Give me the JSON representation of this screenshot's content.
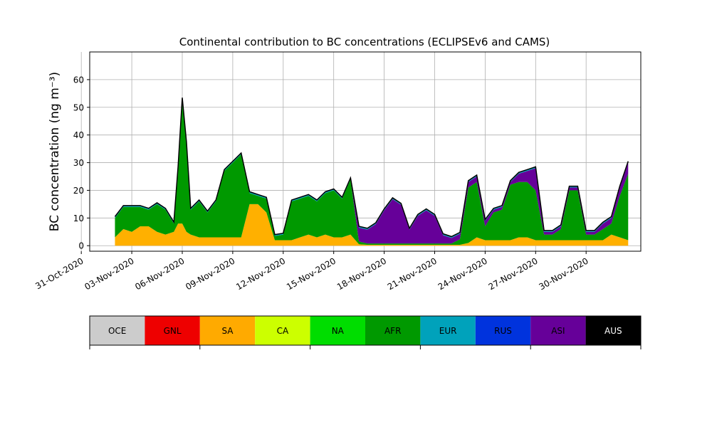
{
  "chart_data": {
    "type": "area",
    "title": "Continental contribution to BC concentrations (ECLIPSEv6 and CAMS)",
    "ylabel": "BC concentration (ng m⁻³)",
    "xlabel": "",
    "x_unit": "date (Nov 2020)",
    "xlim": [
      "2020-10-31T12:00",
      "2020-12-03T06:00"
    ],
    "ylim": [
      -2,
      70
    ],
    "y_ticks": [
      0,
      10,
      20,
      30,
      40,
      50,
      60
    ],
    "x_ticks": [
      "31-Oct-2020",
      "03-Nov-2020",
      "06-Nov-2020",
      "09-Nov-2020",
      "12-Nov-2020",
      "15-Nov-2020",
      "18-Nov-2020",
      "21-Nov-2020",
      "24-Nov-2020",
      "27-Nov-2020",
      "30-Nov-2020"
    ],
    "x_tick_dates": [
      "2020-10-31",
      "2020-11-03",
      "2020-11-06",
      "2020-11-09",
      "2020-11-12",
      "2020-11-15",
      "2020-11-18",
      "2020-11-21",
      "2020-11-24",
      "2020-11-27",
      "2020-11-30"
    ],
    "grid": true,
    "stacking": "stacked",
    "total_line_color": "#000000",
    "dates": [
      "2020-11-02T00:00",
      "2020-11-02T12:00",
      "2020-11-03T00:00",
      "2020-11-03T12:00",
      "2020-11-04T00:00",
      "2020-11-04T12:00",
      "2020-11-05T00:00",
      "2020-11-05T12:00",
      "2020-11-05T18:00",
      "2020-11-06T00:00",
      "2020-11-06T06:00",
      "2020-11-06T12:00",
      "2020-11-07T00:00",
      "2020-11-07T12:00",
      "2020-11-08T00:00",
      "2020-11-08T12:00",
      "2020-11-09T00:00",
      "2020-11-09T12:00",
      "2020-11-10T00:00",
      "2020-11-10T12:00",
      "2020-11-11T00:00",
      "2020-11-11T12:00",
      "2020-11-12T00:00",
      "2020-11-12T12:00",
      "2020-11-13T00:00",
      "2020-11-13T12:00",
      "2020-11-14T00:00",
      "2020-11-14T12:00",
      "2020-11-15T00:00",
      "2020-11-15T12:00",
      "2020-11-16T00:00",
      "2020-11-16T12:00",
      "2020-11-17T00:00",
      "2020-11-17T12:00",
      "2020-11-18T00:00",
      "2020-11-18T12:00",
      "2020-11-19T00:00",
      "2020-11-19T12:00",
      "2020-11-20T00:00",
      "2020-11-20T12:00",
      "2020-11-21T00:00",
      "2020-11-21T12:00",
      "2020-11-22T00:00",
      "2020-11-22T12:00",
      "2020-11-23T00:00",
      "2020-11-23T12:00",
      "2020-11-24T00:00",
      "2020-11-24T12:00",
      "2020-11-25T00:00",
      "2020-11-25T12:00",
      "2020-11-26T00:00",
      "2020-11-26T12:00",
      "2020-11-27T00:00",
      "2020-11-27T12:00",
      "2020-11-28T00:00",
      "2020-11-28T12:00",
      "2020-11-29T00:00",
      "2020-11-29T12:00",
      "2020-11-30T00:00",
      "2020-11-30T12:00",
      "2020-12-01T00:00",
      "2020-12-01T12:00",
      "2020-12-02T00:00",
      "2020-12-02T12:00"
    ],
    "series": [
      {
        "name": "SA",
        "color": "#ffb000",
        "values": [
          3,
          6,
          5,
          7,
          7,
          5,
          4,
          5,
          8,
          8,
          5,
          4,
          3,
          3,
          3,
          3,
          3,
          3,
          15,
          15,
          12,
          2,
          2,
          2,
          3,
          4,
          3,
          4,
          3,
          3,
          4,
          0.5,
          0.3,
          0.3,
          0.3,
          0.3,
          0.3,
          0.3,
          0.3,
          0.3,
          0.3,
          0.3,
          0.3,
          0.3,
          1,
          3,
          2,
          2,
          2,
          2,
          3,
          3,
          2,
          2,
          2,
          2,
          2,
          2,
          2,
          2,
          2,
          4,
          3,
          2
        ]
      },
      {
        "name": "AFR",
        "color": "#009900",
        "values": [
          7,
          8,
          9,
          7,
          6,
          10,
          9,
          3,
          20,
          45,
          32,
          9,
          13,
          9,
          13,
          24,
          27,
          30,
          4,
          3,
          5,
          1.5,
          2,
          14,
          14,
          14,
          13,
          15,
          17,
          14,
          20,
          1,
          0.5,
          0.5,
          0.5,
          0.5,
          0.5,
          0.5,
          0.5,
          0.5,
          0.5,
          0.5,
          0.5,
          2,
          20,
          20,
          5,
          10,
          11,
          20,
          20,
          20,
          18,
          2,
          2,
          4,
          18,
          18,
          2,
          2,
          4,
          4,
          15,
          24
        ]
      },
      {
        "name": "ASI",
        "color": "#660099",
        "values": [
          0,
          0,
          0,
          0,
          0,
          0,
          0,
          0,
          0,
          0,
          0,
          0,
          0,
          0,
          0,
          0,
          0,
          0,
          0,
          0,
          0,
          0,
          0,
          0,
          0,
          0,
          0,
          0,
          0,
          0,
          0,
          5,
          5,
          7,
          12,
          16,
          14,
          5,
          10,
          12,
          10,
          3,
          2,
          2,
          2,
          2,
          2,
          1,
          1,
          1,
          3,
          4,
          8,
          1,
          1,
          1,
          1,
          1,
          1,
          1,
          2,
          2,
          3,
          4
        ]
      },
      {
        "name": "EUR",
        "color": "#00a2bb",
        "values": [
          0.5,
          0.5,
          0.5,
          0.5,
          0.5,
          0.5,
          0.5,
          0.5,
          0.5,
          0.5,
          0.5,
          0.5,
          0.5,
          0.5,
          0.5,
          0.5,
          0.5,
          0.5,
          0.5,
          0.5,
          0.5,
          0.5,
          0.5,
          0.5,
          0.5,
          0.5,
          0.5,
          0.5,
          0.5,
          0.5,
          0.5,
          0.5,
          0.5,
          0.5,
          0.5,
          0.5,
          0.5,
          0.5,
          0.5,
          0.5,
          0.5,
          0.5,
          0.5,
          0.5,
          0.5,
          0.5,
          0.5,
          0.5,
          0.5,
          0.5,
          0.5,
          0.5,
          0.5,
          0.5,
          0.5,
          0.5,
          0.5,
          0.5,
          0.5,
          0.5,
          0.5,
          0.5,
          0.5,
          0.5
        ]
      }
    ]
  },
  "colorbar": {
    "labels": [
      "OCE",
      "GNL",
      "SA",
      "CA",
      "NA",
      "AFR",
      "EUR",
      "RUS",
      "ASI",
      "AUS"
    ],
    "colors": [
      "#cccccc",
      "#ee0000",
      "#ffaa00",
      "#ccff00",
      "#00dd00",
      "#009900",
      "#00a2bb",
      "#0033dd",
      "#660099",
      "#000000"
    ],
    "text_colors": [
      "#000000",
      "#000000",
      "#000000",
      "#000000",
      "#000000",
      "#000000",
      "#000000",
      "#000000",
      "#000000",
      "#ffffff"
    ]
  }
}
